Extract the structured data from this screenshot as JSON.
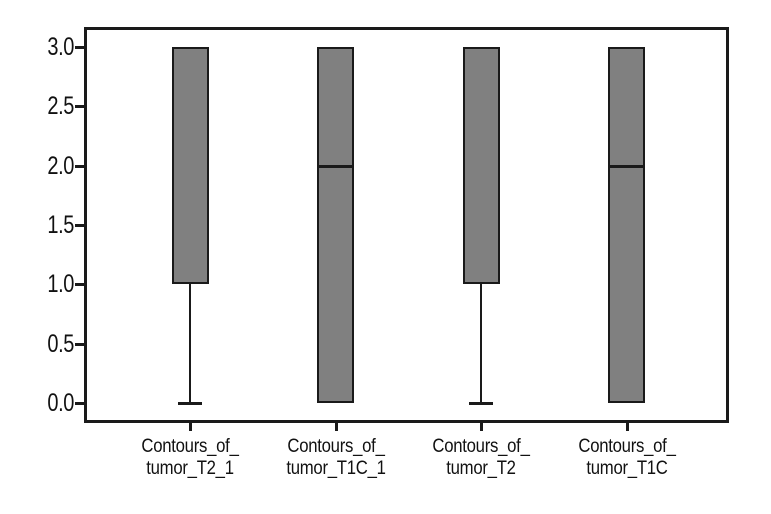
{
  "figure": {
    "background": "#ffffff"
  },
  "chart_data": {
    "type": "boxplot",
    "title": "",
    "xlabel": "",
    "ylabel": "",
    "orientation": "vertical",
    "grid": false,
    "legend": false,
    "categories": [
      "Contours_of_\ntumor_T2_1",
      "Contours_of_\ntumor_T1C_1",
      "Contours_of_\ntumor_T2",
      "Contours_of_\ntumor_T1C"
    ],
    "boxes": [
      {
        "category": "Contours_of_\ntumor_T2_1",
        "whisker_low": 0.0,
        "q1": 1.0,
        "median": null,
        "q3": 3.0,
        "whisker_high": 3.0
      },
      {
        "category": "Contours_of_\ntumor_T1C_1",
        "whisker_low": 0.0,
        "q1": 0.0,
        "median": 2.0,
        "q3": 3.0,
        "whisker_high": 3.0
      },
      {
        "category": "Contours_of_\ntumor_T2",
        "whisker_low": 0.0,
        "q1": 1.0,
        "median": null,
        "q3": 3.0,
        "whisker_high": 3.0
      },
      {
        "category": "Contours_of_\ntumor_T1C",
        "whisker_low": 0.0,
        "q1": 0.0,
        "median": 2.0,
        "q3": 3.0,
        "whisker_high": 3.0
      }
    ],
    "yticks": [
      0.0,
      0.5,
      1.0,
      1.5,
      2.0,
      2.5,
      3.0
    ],
    "ytick_labels": [
      "0.0",
      "0.5",
      "1.0",
      "1.5",
      "2.0",
      "2.5",
      "3.0"
    ],
    "ylim": [
      -0.17,
      3.17
    ],
    "colors": {
      "box_fill": "#808080",
      "line": "#1a1a1a",
      "background": "#ffffff"
    }
  }
}
